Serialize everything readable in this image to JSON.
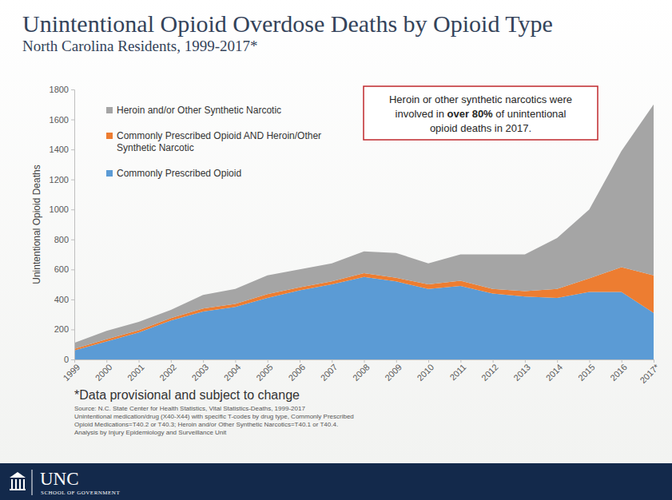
{
  "chart_data": {
    "type": "area",
    "stacked": true,
    "title": "Unintentional Opioid Overdose Deaths by Opioid Type",
    "subtitle": "North Carolina Residents, 1999-2017*",
    "y_label": "Unintentional Opioid Deaths",
    "categories": [
      "1999",
      "2000",
      "2001",
      "2002",
      "2003",
      "2004",
      "2005",
      "2006",
      "2007",
      "2008",
      "2009",
      "2010",
      "2011",
      "2012",
      "2013",
      "2014",
      "2015",
      "2016",
      "2017*"
    ],
    "series": [
      {
        "name": "Commonly Prescribed Opioid",
        "color": "#5b9bd5",
        "values": [
          60,
          120,
          180,
          260,
          320,
          350,
          410,
          460,
          500,
          550,
          520,
          470,
          490,
          440,
          420,
          410,
          450,
          450,
          310
        ]
      },
      {
        "name": "Commonly Prescribed Opioid AND Heroin/Other Synthetic Narcotic",
        "color": "#ed7d31",
        "values": [
          10,
          15,
          15,
          15,
          20,
          20,
          25,
          20,
          20,
          25,
          25,
          30,
          35,
          30,
          35,
          60,
          90,
          165,
          250
        ]
      },
      {
        "name": "Heroin and/or Other Synthetic Narcotic",
        "color": "#a5a5a5",
        "values": [
          40,
          55,
          55,
          55,
          90,
          100,
          125,
          120,
          120,
          145,
          165,
          140,
          175,
          230,
          245,
          340,
          460,
          775,
          1140
        ]
      }
    ],
    "ylim": [
      0,
      1800
    ],
    "yticks": [
      0,
      200,
      400,
      600,
      800,
      1000,
      1200,
      1400,
      1600,
      1800
    ],
    "grid": false,
    "legend": "upper left",
    "annotation": [
      [
        "Heroin or other synthetic narcotics were"
      ],
      [
        "involved in ",
        "over 80%",
        " of unintentional"
      ],
      [
        "opioid deaths in 2017."
      ]
    ],
    "footnote": "*Data provisional and subject to change",
    "source": [
      "Source: N.C. State Center for Health Statistics, Vital Statistics-Deaths, 1999-2017",
      "Unintentional medication/drug (X40-X44) with specific T-codes by drug type, Commonly Prescribed",
      "Opioid Medications=T40.2 or T40.3; Heroin and/or Other Synthetic Narcotics=T40.1 or T40.4.",
      "Analysis by Injury Epidemiology and Surveillance Unit"
    ],
    "footer": {
      "logo": "UNC",
      "org": "SCHOOL OF GOVERNMENT"
    }
  }
}
